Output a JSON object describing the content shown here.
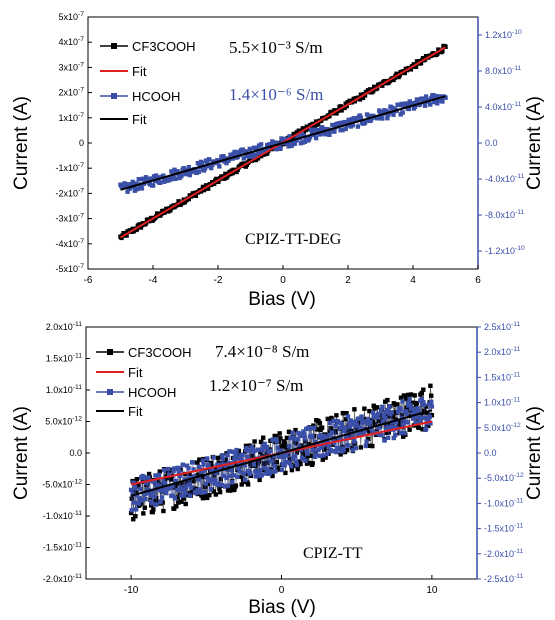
{
  "chart_data": [
    {
      "type": "scatter",
      "name": "CPIZ-TT-DEG",
      "annotation": "CPIZ-TT-DEG",
      "xlabel": "Bias (V)",
      "ylabel": "Current (A)",
      "ylabel_right": "Current (A)",
      "xlim": [
        -6,
        6
      ],
      "ylim": [
        -5e-07,
        5e-07
      ],
      "ylim_right": [
        -1.4e-10,
        1.4e-10
      ],
      "x_ticks": [
        "-6",
        "-4",
        "-2",
        "0",
        "2",
        "4",
        "6"
      ],
      "x_tick_values": [
        -6,
        -4,
        -2,
        0,
        2,
        4,
        6
      ],
      "y_ticks": [
        "5x10-7",
        "4x10-7",
        "3x10-7",
        "2x10-7",
        "1x10-7",
        "0",
        "-1x10-7",
        "-2x10-7",
        "-3x10-7",
        "-4x10-7",
        "-5x10-7"
      ],
      "y_tick_values": [
        5e-07,
        4e-07,
        3e-07,
        2e-07,
        1e-07,
        0,
        -1e-07,
        -2e-07,
        -3e-07,
        -4e-07,
        -5e-07
      ],
      "y_right_ticks": [
        "1.2x10-10",
        "8.0x10-11",
        "4.0x10-11",
        "0.0",
        "-4.0x10-11",
        "-8.0x10-11",
        "-1.2x10-10"
      ],
      "y_right_tick_values": [
        1.2e-10,
        8e-11,
        4e-11,
        0,
        -4e-11,
        -8e-11,
        -1.2e-10
      ],
      "legend_position": "top-left",
      "legend": [
        "CF3COOH",
        "Fit",
        "HCOOH",
        "Fit"
      ],
      "conductivity_labels": [
        {
          "text": "5.5×10⁻³ S/m",
          "color": "#000000"
        },
        {
          "text": "1.4×10⁻⁶ S/m",
          "color": "#3a4fa8"
        }
      ],
      "series": [
        {
          "name": "CF3COOH",
          "axis": "left",
          "x_range": [
            -5,
            5
          ],
          "y_range": [
            -3.75e-07,
            3.8e-07
          ],
          "noise": 1e-08,
          "color": "#000000",
          "marker": "square"
        },
        {
          "name": "Fit",
          "axis": "left",
          "x": [
            -5,
            5
          ],
          "y": [
            -3.75e-07,
            3.8e-07
          ],
          "color": "#e02020"
        },
        {
          "name": "HCOOH",
          "axis": "right",
          "x_range": [
            -5,
            5
          ],
          "y_range": [
            -5.2e-11,
            5.2e-11
          ],
          "noise": 6e-12,
          "color": "#3a4fa8",
          "marker": "square"
        },
        {
          "name": "Fit",
          "axis": "right",
          "x": [
            -5,
            5
          ],
          "y": [
            -5.2e-11,
            5.2e-11
          ],
          "color": "#000000"
        }
      ]
    },
    {
      "type": "scatter",
      "name": "CPIZ-TT",
      "annotation": "CPIZ-TT",
      "xlabel": "Bias (V)",
      "ylabel": "Current (A)",
      "ylabel_right": "Current (A)",
      "xlim": [
        -13,
        13
      ],
      "ylim": [
        -2e-11,
        2e-11
      ],
      "ylim_right": [
        -2.5e-11,
        2.5e-11
      ],
      "x_ticks": [
        "-10",
        "0",
        "10"
      ],
      "x_tick_values": [
        -10,
        0,
        10
      ],
      "y_ticks": [
        "2.0x10-11",
        "1.5x10-11",
        "1.0x10-11",
        "5.0x10-12",
        "0.0",
        "-5.0x10-12",
        "-1.0x10-11",
        "-1.5x10-11",
        "-2.0x10-11"
      ],
      "y_tick_values": [
        2e-11,
        1.5e-11,
        1e-11,
        5e-12,
        0,
        -5e-12,
        -1e-11,
        -1.5e-11,
        -2e-11
      ],
      "y_right_ticks": [
        "2.5x10-11",
        "2.0x10-11",
        "1.5x10-11",
        "1.0x10-11",
        "5.0x10-12",
        "0.0",
        "-5.0x10-12",
        "-1.0x10-11",
        "-1.5x10-11",
        "-2.0x10-11",
        "-2.5x10-11"
      ],
      "y_right_tick_values": [
        2.5e-11,
        2e-11,
        1.5e-11,
        1e-11,
        5e-12,
        0,
        -5e-12,
        -1e-11,
        -1.5e-11,
        -2e-11,
        -2.5e-11
      ],
      "legend_position": "top-left",
      "legend": [
        "CF3COOH",
        "Fit",
        "HCOOH",
        "Fit"
      ],
      "conductivity_labels": [
        {
          "text": "7.4×10⁻⁸ S/m",
          "color": "#000000"
        },
        {
          "text": "1.2×10⁻⁷ S/m",
          "color": "#000000"
        }
      ],
      "series": [
        {
          "name": "CF3COOH",
          "axis": "left",
          "x_range": [
            -10,
            10
          ],
          "y_range": [
            -7.5e-12,
            7.5e-12
          ],
          "noise": 3.5e-12,
          "color": "#000000",
          "marker": "square"
        },
        {
          "name": "Fit",
          "axis": "left",
          "x": [
            -10,
            10
          ],
          "y": [
            -5e-12,
            5e-12
          ],
          "color": "#e02020"
        },
        {
          "name": "HCOOH",
          "axis": "right",
          "x_range": [
            -10,
            10
          ],
          "y_range": [
            -8.5e-12,
            8.5e-12
          ],
          "noise": 3.5e-12,
          "color": "#3a4fa8",
          "marker": "square"
        },
        {
          "name": "Fit",
          "axis": "right",
          "x": [
            -10,
            10
          ],
          "y": [
            -8.5e-12,
            8.5e-12
          ],
          "color": "#000000"
        }
      ]
    }
  ]
}
